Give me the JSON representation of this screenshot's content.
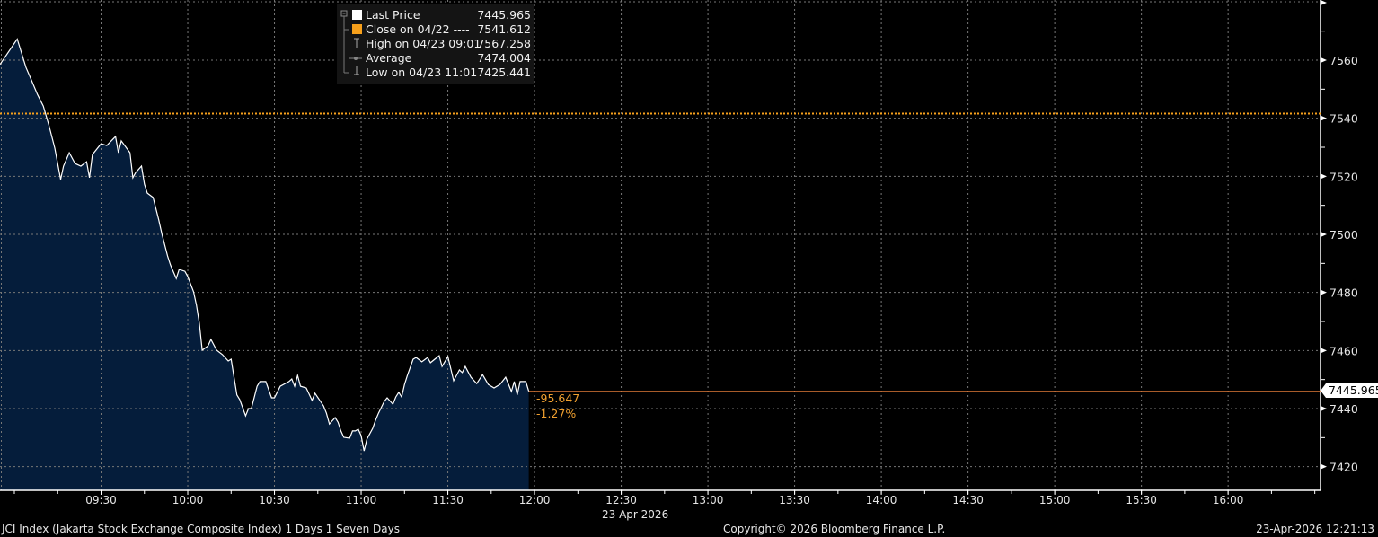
{
  "chart_data": {
    "type": "area",
    "title": "",
    "xlabel": "23 Apr 2026",
    "ylabel": "",
    "ylim": [
      7412,
      7578
    ],
    "xlim": [
      "08:55",
      "16:30"
    ],
    "grid": true,
    "legend_placement": "top-center",
    "y_ticks": [
      7420,
      7440,
      7460,
      7480,
      7500,
      7520,
      7540,
      7560
    ],
    "x_ticks": [
      "09:30",
      "10:00",
      "10:30",
      "11:00",
      "11:30",
      "12:00",
      "12:30",
      "13:00",
      "13:30",
      "14:00",
      "14:30",
      "15:00",
      "15:30",
      "16:00"
    ],
    "colors": {
      "line": "#ffffff",
      "fill": "#051d3b",
      "close_line": "#f7a01b",
      "last_line": "#e07b39",
      "change_text": "#f0a030"
    },
    "series": [
      {
        "name": "Last Price",
        "points": [
          [
            "08:55",
            7558.5
          ],
          [
            "09:01",
            7567.258
          ],
          [
            "09:04",
            7557.5
          ],
          [
            "09:06",
            7552.9
          ],
          [
            "09:08",
            7548.2
          ],
          [
            "09:10",
            7544.2
          ],
          [
            "09:12",
            7537.4
          ],
          [
            "09:14",
            7529.7
          ],
          [
            "09:16",
            7518.9
          ],
          [
            "09:17",
            7523.5
          ],
          [
            "09:19",
            7528.1
          ],
          [
            "09:21",
            7524.4
          ],
          [
            "09:23",
            7523.5
          ],
          [
            "09:25",
            7525.0
          ],
          [
            "09:26",
            7519.5
          ],
          [
            "09:27",
            7527.5
          ],
          [
            "09:30",
            7531.2
          ],
          [
            "09:32",
            7530.6
          ],
          [
            "09:35",
            7533.7
          ],
          [
            "09:36",
            7528.1
          ],
          [
            "09:37",
            7532.2
          ],
          [
            "09:40",
            7528.1
          ],
          [
            "09:41",
            7519.5
          ],
          [
            "09:42",
            7521.3
          ],
          [
            "09:44",
            7523.5
          ],
          [
            "09:45",
            7517.3
          ],
          [
            "09:46",
            7514.2
          ],
          [
            "09:48",
            7512.7
          ],
          [
            "09:50",
            7504.9
          ],
          [
            "09:51",
            7500.3
          ],
          [
            "09:53",
            7492.6
          ],
          [
            "09:54",
            7489.5
          ],
          [
            "09:56",
            7484.8
          ],
          [
            "09:57",
            7487.9
          ],
          [
            "09:59",
            7487.3
          ],
          [
            "10:00",
            7485.5
          ],
          [
            "10:02",
            7480.2
          ],
          [
            "10:03",
            7475.6
          ],
          [
            "10:04",
            7469.4
          ],
          [
            "10:05",
            7460.1
          ],
          [
            "10:07",
            7461.6
          ],
          [
            "10:08",
            7463.8
          ],
          [
            "10:10",
            7460.1
          ],
          [
            "10:12",
            7458.6
          ],
          [
            "10:14",
            7456.4
          ],
          [
            "10:15",
            7457.0
          ],
          [
            "10:16",
            7450.8
          ],
          [
            "10:17",
            7444.7
          ],
          [
            "10:18",
            7443.1
          ],
          [
            "10:20",
            7437.5
          ],
          [
            "10:21",
            7440.0
          ],
          [
            "10:22",
            7440.0
          ],
          [
            "10:24",
            7447.7
          ],
          [
            "10:25",
            7449.3
          ],
          [
            "10:27",
            7449.3
          ],
          [
            "10:29",
            7443.7
          ],
          [
            "10:30",
            7443.7
          ],
          [
            "10:32",
            7447.7
          ],
          [
            "10:35",
            7449.3
          ],
          [
            "10:36",
            7450.2
          ],
          [
            "10:37",
            7447.7
          ],
          [
            "10:38",
            7451.4
          ],
          [
            "10:39",
            7447.7
          ],
          [
            "10:41",
            7447.1
          ],
          [
            "10:43",
            7442.8
          ],
          [
            "10:44",
            7445.3
          ],
          [
            "10:47",
            7440.9
          ],
          [
            "10:48",
            7438.4
          ],
          [
            "10:49",
            7434.7
          ],
          [
            "10:51",
            7436.9
          ],
          [
            "10:52",
            7435.3
          ],
          [
            "10:53",
            7432.3
          ],
          [
            "10:54",
            7430.1
          ],
          [
            "10:56",
            7429.8
          ],
          [
            "10:57",
            7432.3
          ],
          [
            "10:58",
            7432.3
          ],
          [
            "10:59",
            7432.9
          ],
          [
            "11:00",
            7430.7
          ],
          [
            "11:01",
            7425.441
          ],
          [
            "11:02",
            7429.5
          ],
          [
            "11:04",
            7433.2
          ],
          [
            "11:05",
            7436.0
          ],
          [
            "11:06",
            7438.4
          ],
          [
            "11:08",
            7442.5
          ],
          [
            "11:09",
            7443.7
          ],
          [
            "11:11",
            7441.5
          ],
          [
            "11:12",
            7444.0
          ],
          [
            "11:13",
            7445.6
          ],
          [
            "11:14",
            7444.0
          ],
          [
            "11:15",
            7448.3
          ],
          [
            "11:16",
            7451.4
          ],
          [
            "11:18",
            7457.0
          ],
          [
            "11:19",
            7457.6
          ],
          [
            "11:21",
            7456.1
          ],
          [
            "11:23",
            7457.6
          ],
          [
            "11:24",
            7455.8
          ],
          [
            "11:27",
            7458.2
          ],
          [
            "11:28",
            7454.5
          ],
          [
            "11:30",
            7457.9
          ],
          [
            "11:32",
            7449.6
          ],
          [
            "11:34",
            7453.3
          ],
          [
            "11:35",
            7452.4
          ],
          [
            "11:36",
            7454.5
          ],
          [
            "11:38",
            7450.8
          ],
          [
            "11:40",
            7448.6
          ],
          [
            "11:42",
            7451.7
          ],
          [
            "11:44",
            7448.3
          ],
          [
            "11:45",
            7447.7
          ],
          [
            "11:46",
            7447.1
          ],
          [
            "11:48",
            7448.3
          ],
          [
            "11:50",
            7450.8
          ],
          [
            "11:52",
            7445.9
          ],
          [
            "11:53",
            7449.3
          ],
          [
            "11:54",
            7444.7
          ],
          [
            "11:55",
            7449.3
          ],
          [
            "11:57",
            7449.3
          ],
          [
            "11:58",
            7445.965
          ]
        ]
      }
    ],
    "reference_lines": {
      "close": 7541.612,
      "last": 7445.965
    },
    "last_price_tag": "7445.965",
    "change": {
      "abs": "-95.647",
      "pct": "-1.27%"
    }
  },
  "legend": [
    {
      "label": "Last Price",
      "value": "7445.965",
      "marker": "white-square"
    },
    {
      "label": "Close on 04/22 ----",
      "value": "7541.612",
      "marker": "orange-square"
    },
    {
      "label": "High on 04/23 09:01",
      "value": "7567.258",
      "marker": "high-icon"
    },
    {
      "label": "Average",
      "value": "7474.004",
      "marker": "average-icon"
    },
    {
      "label": "Low on 04/23 11:01",
      "value": "7425.441",
      "marker": "low-icon"
    }
  ],
  "footer": {
    "left": "JCI Index (Jakarta Stock Exchange Composite Index) 1 Days 1 Seven Days",
    "center": "Copyright© 2026 Bloomberg Finance L.P.",
    "right": "23-Apr-2026 12:21:13"
  }
}
